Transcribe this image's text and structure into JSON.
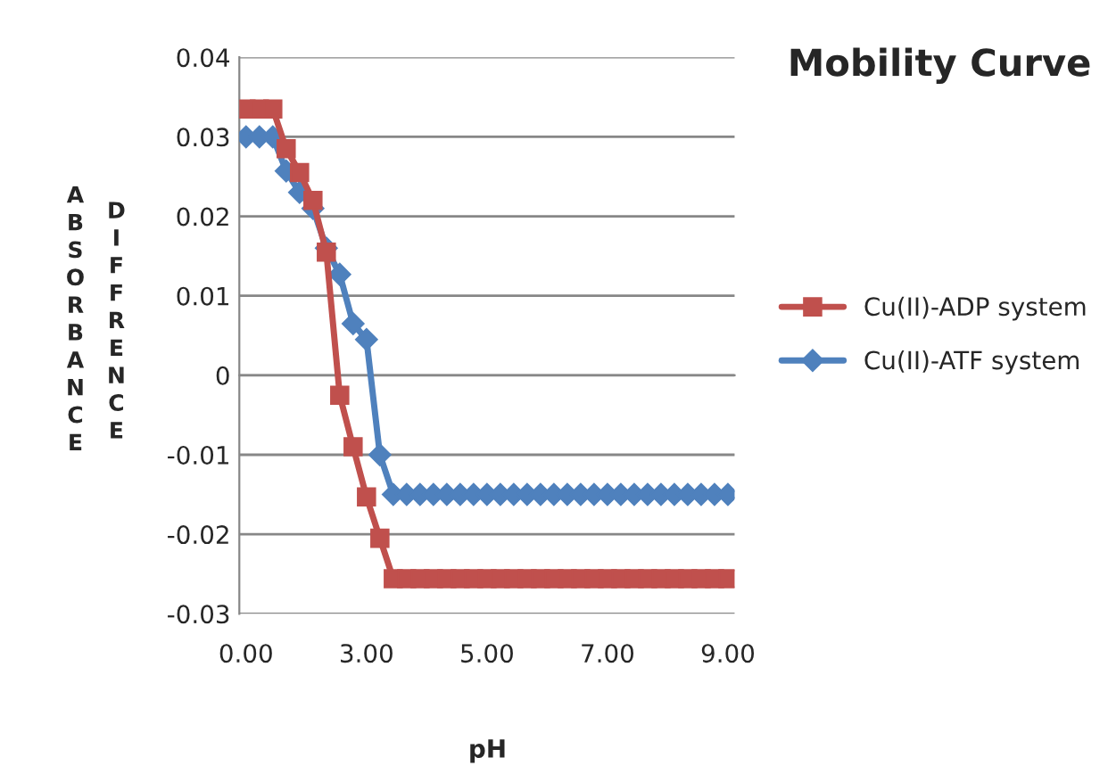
{
  "chart_data": {
    "type": "line",
    "title": "Mobility Curve",
    "xlabel": "pH",
    "ylabel": "ABSORBANCE DIFFRENCE",
    "categories": [
      "0.00",
      null,
      null,
      null,
      null,
      null,
      null,
      null,
      null,
      "3.00",
      null,
      null,
      null,
      null,
      null,
      null,
      null,
      null,
      "5.00",
      null,
      null,
      null,
      null,
      null,
      null,
      null,
      null,
      "7.00",
      null,
      null,
      null,
      null,
      null,
      null,
      null,
      null,
      "9.00"
    ],
    "series": [
      {
        "name": "Cu(II)-ADP system",
        "color": "#c0504d",
        "marker": "square",
        "values": [
          0.0335,
          0.0335,
          0.0335,
          0.0285,
          0.0255,
          0.022,
          0.0155,
          -0.0025,
          -0.009,
          -0.0153,
          -0.0205,
          -0.0256,
          -0.0256,
          -0.0256,
          -0.0256,
          -0.0256,
          -0.0256,
          -0.0256,
          -0.0256,
          -0.0256,
          -0.0256,
          -0.0256,
          -0.0256,
          -0.0256,
          -0.0256,
          -0.0256,
          -0.0256,
          -0.0256,
          -0.0256,
          -0.0256,
          -0.0256,
          -0.0256,
          -0.0256,
          -0.0256,
          -0.0256,
          -0.0256,
          -0.0256
        ]
      },
      {
        "name": "Cu(II)-ATF system",
        "color": "#4f81bd",
        "marker": "diamond",
        "values": [
          0.03,
          0.03,
          0.03,
          0.0257,
          0.023,
          0.021,
          0.016,
          0.0127,
          0.0065,
          0.0045,
          -0.01,
          -0.015,
          -0.015,
          -0.015,
          -0.015,
          -0.015,
          -0.015,
          -0.015,
          -0.015,
          -0.015,
          -0.015,
          -0.015,
          -0.015,
          -0.015,
          -0.015,
          -0.015,
          -0.015,
          -0.015,
          -0.015,
          -0.015,
          -0.015,
          -0.015,
          -0.015,
          -0.015,
          -0.015,
          -0.015,
          -0.015
        ]
      }
    ],
    "ylim": [
      -0.03,
      0.04
    ],
    "yticks": [
      {
        "value": -0.03,
        "label": "-0.03"
      },
      {
        "value": -0.02,
        "label": "-0.02"
      },
      {
        "value": -0.01,
        "label": "-0.01"
      },
      0,
      {
        "value": 0.01,
        "label": "0.01"
      },
      {
        "value": 0.02,
        "label": "0.02"
      },
      {
        "value": 0.03,
        "label": "0.03"
      },
      {
        "value": 0.04,
        "label": "0.04"
      }
    ],
    "grid": "y",
    "legend": "right",
    "line_style": "solid"
  }
}
